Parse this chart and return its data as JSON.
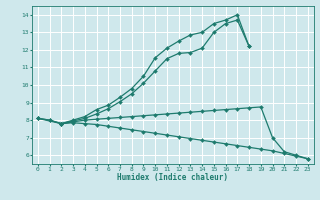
{
  "background_color": "#cfe8ec",
  "line_color": "#1e7b6e",
  "grid_color": "#ffffff",
  "xlabel": "Humidex (Indice chaleur)",
  "xlim": [
    -0.5,
    23.5
  ],
  "ylim": [
    5.5,
    14.5
  ],
  "xticks": [
    0,
    1,
    2,
    3,
    4,
    5,
    6,
    7,
    8,
    9,
    10,
    11,
    12,
    13,
    14,
    15,
    16,
    17,
    18,
    19,
    20,
    21,
    22,
    23
  ],
  "yticks": [
    6,
    7,
    8,
    9,
    10,
    11,
    12,
    13,
    14
  ],
  "line1_x": [
    0,
    1,
    2,
    3,
    4,
    5,
    6,
    7,
    8,
    9,
    10,
    11,
    12,
    13,
    14,
    15,
    16,
    17,
    18
  ],
  "line1_y": [
    8.1,
    8.0,
    7.8,
    8.0,
    8.2,
    8.6,
    8.85,
    9.3,
    9.8,
    10.5,
    11.55,
    12.1,
    12.5,
    12.85,
    13.0,
    13.5,
    13.7,
    14.0,
    12.2
  ],
  "line2_x": [
    0,
    2,
    3,
    4,
    5,
    6,
    7,
    8,
    9,
    10,
    11,
    12,
    13,
    14,
    15,
    16,
    17,
    18
  ],
  "line2_y": [
    8.1,
    7.8,
    7.95,
    8.1,
    8.35,
    8.65,
    9.05,
    9.5,
    10.1,
    10.8,
    11.5,
    11.8,
    11.85,
    12.1,
    13.0,
    13.5,
    13.7,
    12.2
  ],
  "line3_x": [
    0,
    1,
    2,
    3,
    4,
    5,
    6,
    7,
    8,
    9,
    10,
    11,
    12,
    13,
    14,
    15,
    16,
    17,
    18,
    19,
    20,
    21,
    22,
    23
  ],
  "line3_y": [
    8.1,
    8.0,
    7.8,
    7.9,
    8.0,
    8.05,
    8.1,
    8.15,
    8.2,
    8.25,
    8.3,
    8.35,
    8.4,
    8.45,
    8.5,
    8.55,
    8.6,
    8.65,
    8.7,
    8.75,
    7.0,
    6.2,
    6.0,
    5.8
  ],
  "line4_x": [
    2,
    3,
    4,
    5,
    6,
    7,
    8,
    9,
    10,
    11,
    12,
    13,
    14,
    15,
    16,
    17,
    18,
    19,
    20,
    21,
    22,
    23
  ],
  "line4_y": [
    7.8,
    7.85,
    7.8,
    7.75,
    7.65,
    7.55,
    7.45,
    7.35,
    7.25,
    7.15,
    7.05,
    6.95,
    6.85,
    6.75,
    6.65,
    6.55,
    6.45,
    6.35,
    6.25,
    6.1,
    5.95,
    5.8
  ]
}
